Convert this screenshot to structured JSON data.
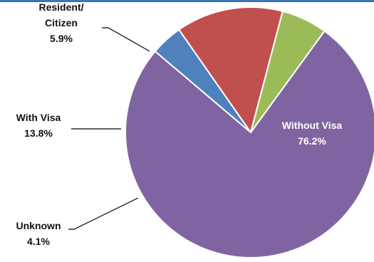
{
  "chart_data": {
    "type": "pie",
    "title": "",
    "start_angle_deg": 36,
    "direction": "clockwise",
    "slices": [
      {
        "label": "Without Visa",
        "label_lines": [
          "Without Visa"
        ],
        "value_label": "76.2%",
        "value": 76.2,
        "color": "#8064a2"
      },
      {
        "label": "Unknown",
        "label_lines": [
          "Unknown"
        ],
        "value_label": "4.1%",
        "value": 4.1,
        "color": "#4f81bd"
      },
      {
        "label": "With Visa",
        "label_lines": [
          "With Visa"
        ],
        "value_label": "13.8%",
        "value": 13.8,
        "color": "#c0504d"
      },
      {
        "label": "Resident/ Citizen",
        "label_lines": [
          "Resident/",
          "Citizen"
        ],
        "value_label": "5.9%",
        "value": 5.9,
        "color": "#9bbb59"
      }
    ]
  },
  "colors": {
    "top_bar": "#3b74b8",
    "slice_border": "#ffffff",
    "leader_line": "#000000"
  }
}
